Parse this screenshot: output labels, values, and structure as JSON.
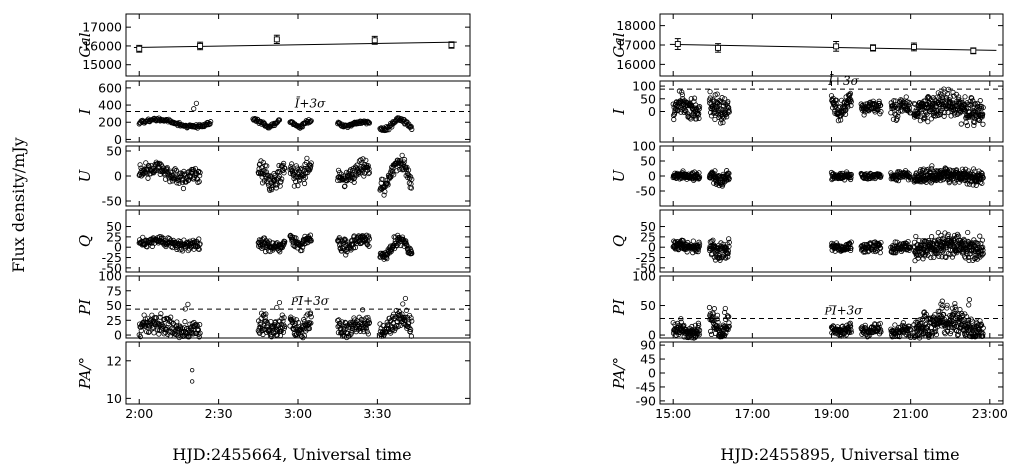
{
  "figure": {
    "ylabel": "Flux density/mJy"
  },
  "chart_data": [
    {
      "type": "scatter",
      "xlabel": "HJD:2455664, Universal time",
      "x_range": [
        "01:55",
        "04:05"
      ],
      "x_ticks": [
        "2:00",
        "2:30",
        "3:00",
        "3:30"
      ],
      "panels": [
        {
          "name": "Cal",
          "ylim": [
            14400,
            17700
          ],
          "yticks": [
            15000,
            16000,
            17000
          ],
          "points": [
            [
              "2:00",
              15850,
              180
            ],
            [
              "2:23",
              16000,
              200
            ],
            [
              "2:52",
              16350,
              220
            ],
            [
              "3:29",
              16300,
              210
            ],
            [
              "3:58",
              16050,
              170
            ]
          ],
          "trend": [
            [
              "1:58",
              15920
            ],
            [
              "4:00",
              16200
            ]
          ]
        },
        {
          "name": "I",
          "ylim": [
            -30,
            680
          ],
          "yticks": [
            0,
            200,
            400,
            600
          ],
          "threshold": {
            "label": "Ī+3σ",
            "value": 325
          },
          "segments": [
            {
              "start": "2:00",
              "end": "2:27",
              "n": 110,
              "baseline": 190,
              "amp": 40,
              "noise": 10,
              "burst": 420
            },
            {
              "start": "2:43",
              "end": "2:53",
              "n": 45,
              "baseline": 190,
              "amp": 40,
              "noise": 12
            },
            {
              "start": "2:57",
              "end": "3:05",
              "n": 35,
              "baseline": 180,
              "amp": 30,
              "noise": 12
            },
            {
              "start": "3:15",
              "end": "3:27",
              "n": 55,
              "baseline": 185,
              "amp": 25,
              "noise": 10
            },
            {
              "start": "3:31",
              "end": "3:43",
              "n": 55,
              "baseline": 175,
              "amp": 60,
              "noise": 12
            }
          ]
        },
        {
          "name": "U",
          "ylim": [
            -60,
            60
          ],
          "yticks": [
            -50,
            0,
            50
          ],
          "segments": [
            {
              "start": "2:00",
              "end": "2:23",
              "n": 140,
              "baseline": 5,
              "amp": 10,
              "noise": 8
            },
            {
              "start": "2:45",
              "end": "2:55",
              "n": 70,
              "baseline": 0,
              "amp": 12,
              "noise": 10
            },
            {
              "start": "2:57",
              "end": "3:05",
              "n": 55,
              "baseline": 5,
              "amp": 10,
              "noise": 10
            },
            {
              "start": "3:15",
              "end": "3:27",
              "n": 80,
              "baseline": 5,
              "amp": 12,
              "noise": 8
            },
            {
              "start": "3:31",
              "end": "3:43",
              "n": 80,
              "baseline": 5,
              "amp": 25,
              "noise": 8
            }
          ]
        },
        {
          "name": "Q",
          "ylim": [
            -60,
            90
          ],
          "yticks": [
            -50,
            -25,
            0,
            25,
            50
          ],
          "segments": [
            {
              "start": "2:00",
              "end": "2:23",
              "n": 140,
              "baseline": 10,
              "amp": 5,
              "noise": 6
            },
            {
              "start": "2:45",
              "end": "2:55",
              "n": 70,
              "baseline": 5,
              "amp": 5,
              "noise": 7
            },
            {
              "start": "2:57",
              "end": "3:05",
              "n": 55,
              "baseline": 15,
              "amp": 10,
              "noise": 7
            },
            {
              "start": "3:15",
              "end": "3:27",
              "n": 80,
              "baseline": 10,
              "amp": 10,
              "noise": 8
            },
            {
              "start": "3:31",
              "end": "3:43",
              "n": 80,
              "baseline": 0,
              "amp": 20,
              "noise": 7
            }
          ]
        },
        {
          "name": "PI",
          "ylim": [
            -5,
            100
          ],
          "yticks": [
            0,
            25,
            50,
            75,
            100
          ],
          "threshold": {
            "label": "P͞I+3σ",
            "value": 44
          },
          "segments": [
            {
              "start": "2:00",
              "end": "2:23",
              "n": 150,
              "baseline": 12,
              "amp": 6,
              "noise": 8,
              "burst": 52
            },
            {
              "start": "2:45",
              "end": "2:55",
              "n": 75,
              "baseline": 14,
              "amp": 6,
              "noise": 9,
              "burst": 55
            },
            {
              "start": "2:57",
              "end": "3:05",
              "n": 60,
              "baseline": 18,
              "amp": 8,
              "noise": 9
            },
            {
              "start": "3:15",
              "end": "3:27",
              "n": 85,
              "baseline": 14,
              "amp": 6,
              "noise": 9
            },
            {
              "start": "3:31",
              "end": "3:43",
              "n": 85,
              "baseline": 18,
              "amp": 12,
              "noise": 8,
              "burst": 62
            }
          ]
        },
        {
          "name": "PA/°",
          "ylim": [
            9.7,
            13
          ],
          "yticks": [
            10,
            12
          ],
          "points": [
            [
              "2:20",
              11.5
            ],
            [
              "2:20",
              10.9
            ]
          ]
        }
      ]
    },
    {
      "type": "scatter",
      "xlabel": "HJD:2455895, Universal time",
      "x_range": [
        "14:40",
        "23:20"
      ],
      "x_ticks": [
        "15:00",
        "17:00",
        "19:00",
        "21:00",
        "23:00"
      ],
      "panels": [
        {
          "name": "Cal",
          "ylim": [
            15400,
            18600
          ],
          "yticks": [
            16000,
            17000,
            18000
          ],
          "points": [
            [
              "15:07",
              17050,
              280
            ],
            [
              "16:08",
              16850,
              220
            ],
            [
              "19:07",
              16930,
              250
            ],
            [
              "20:03",
              16850,
              160
            ],
            [
              "21:05",
              16900,
              200
            ],
            [
              "22:35",
              16700,
              150
            ]
          ],
          "trend": [
            [
              "14:55",
              17030
            ],
            [
              "23:10",
              16720
            ]
          ]
        },
        {
          "name": "I",
          "ylim": [
            -120,
            120
          ],
          "yticks": [
            0,
            50,
            100
          ],
          "threshold": {
            "label": "Ī+3σ",
            "value": 88
          },
          "segments": [
            {
              "start": "15:00",
              "end": "15:40",
              "n": 90,
              "baseline": 15,
              "amp": 10,
              "noise": 22
            },
            {
              "start": "15:55",
              "end": "16:25",
              "n": 70,
              "baseline": 15,
              "amp": 12,
              "noise": 25
            },
            {
              "start": "19:00",
              "end": "19:30",
              "n": 70,
              "baseline": 20,
              "amp": 25,
              "noise": 20
            },
            {
              "start": "19:45",
              "end": "20:15",
              "n": 55,
              "baseline": 15,
              "amp": 5,
              "noise": 12
            },
            {
              "start": "20:30",
              "end": "21:00",
              "n": 55,
              "baseline": 15,
              "amp": 10,
              "noise": 18
            },
            {
              "start": "21:05",
              "end": "22:50",
              "n": 260,
              "baseline": 15,
              "amp": 15,
              "noise": 25
            }
          ]
        },
        {
          "name": "U",
          "ylim": [
            -100,
            100
          ],
          "yticks": [
            -50,
            0,
            50,
            100
          ],
          "segments": [
            {
              "start": "15:00",
              "end": "15:40",
              "n": 90,
              "baseline": 0,
              "amp": 3,
              "noise": 6
            },
            {
              "start": "15:55",
              "end": "16:25",
              "n": 70,
              "baseline": -5,
              "amp": 8,
              "noise": 10
            },
            {
              "start": "19:00",
              "end": "19:30",
              "n": 60,
              "baseline": 0,
              "amp": 3,
              "noise": 6
            },
            {
              "start": "19:45",
              "end": "20:15",
              "n": 55,
              "baseline": 0,
              "amp": 2,
              "noise": 5
            },
            {
              "start": "20:30",
              "end": "21:00",
              "n": 55,
              "baseline": 0,
              "amp": 3,
              "noise": 7
            },
            {
              "start": "21:05",
              "end": "22:50",
              "n": 260,
              "baseline": 0,
              "amp": 5,
              "noise": 12
            }
          ]
        },
        {
          "name": "Q",
          "ylim": [
            -60,
            90
          ],
          "yticks": [
            -50,
            -25,
            0,
            25,
            50
          ],
          "segments": [
            {
              "start": "15:00",
              "end": "15:40",
              "n": 90,
              "baseline": 3,
              "amp": 3,
              "noise": 6
            },
            {
              "start": "15:55",
              "end": "16:25",
              "n": 70,
              "baseline": -5,
              "amp": 5,
              "noise": 12
            },
            {
              "start": "19:00",
              "end": "19:30",
              "n": 60,
              "baseline": 0,
              "amp": 3,
              "noise": 6
            },
            {
              "start": "19:45",
              "end": "20:15",
              "n": 55,
              "baseline": 0,
              "amp": 3,
              "noise": 6
            },
            {
              "start": "20:30",
              "end": "21:00",
              "n": 55,
              "baseline": 0,
              "amp": 3,
              "noise": 6
            },
            {
              "start": "21:05",
              "end": "22:50",
              "n": 260,
              "baseline": 0,
              "amp": 5,
              "noise": 14
            }
          ]
        },
        {
          "name": "PI",
          "ylim": [
            -5,
            100
          ],
          "yticks": [
            0,
            50,
            100
          ],
          "threshold": {
            "label": "P͞I+3σ",
            "value": 28
          },
          "segments": [
            {
              "start": "15:00",
              "end": "15:40",
              "n": 90,
              "baseline": 8,
              "amp": 3,
              "noise": 6
            },
            {
              "start": "15:55",
              "end": "16:25",
              "n": 70,
              "baseline": 15,
              "amp": 10,
              "noise": 10,
              "burst": 45
            },
            {
              "start": "19:00",
              "end": "19:30",
              "n": 60,
              "baseline": 8,
              "amp": 3,
              "noise": 5
            },
            {
              "start": "19:45",
              "end": "20:15",
              "n": 55,
              "baseline": 8,
              "amp": 3,
              "noise": 5
            },
            {
              "start": "20:30",
              "end": "21:00",
              "n": 55,
              "baseline": 8,
              "amp": 3,
              "noise": 5
            },
            {
              "start": "21:05",
              "end": "22:50",
              "n": 260,
              "baseline": 15,
              "amp": 10,
              "noise": 12,
              "burst": 60
            }
          ]
        },
        {
          "name": "PA/°",
          "ylim": [
            -100,
            100
          ],
          "yticks": [
            -90,
            -45,
            0,
            45,
            90
          ],
          "points": []
        }
      ]
    }
  ]
}
